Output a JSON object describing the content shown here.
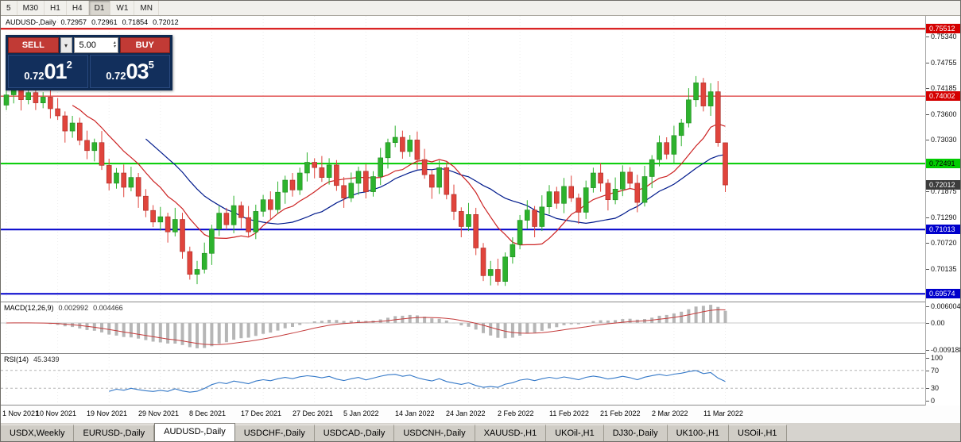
{
  "toolbar": {
    "periods": [
      "5",
      "M30",
      "H1",
      "H4",
      "D1",
      "W1",
      "MN"
    ],
    "active": "D1"
  },
  "chart": {
    "symbol_label": "AUDUSD-,Daily",
    "ohlc": [
      "0.72957",
      "0.72961",
      "0.71854",
      "0.72012"
    ]
  },
  "trade_panel": {
    "sell_label": "SELL",
    "buy_label": "BUY",
    "volume": "5.00",
    "sell_price": {
      "base": "0.72",
      "pips": "01",
      "frac": "2"
    },
    "buy_price": {
      "base": "0.72",
      "pips": "03",
      "frac": "5"
    }
  },
  "chart_data": {
    "type": "candlestick",
    "symbol": "AUDUSD",
    "timeframe": "Daily",
    "price_max": 0.758,
    "price_min": 0.694,
    "x_offset": 7,
    "x_step": 9.23,
    "up_color": "#2db22d",
    "down_color": "#e0443c",
    "wick_up": "#1d8a1d",
    "wick_down": "#a82c26",
    "ma_fast": {
      "period": 10,
      "color": "#cc2222"
    },
    "ma_slow": {
      "period": 20,
      "color": "#001a8c"
    },
    "y_ticks": [
      "0.75340",
      "0.74755",
      "0.74185",
      "0.73600",
      "0.73030",
      "0.72445",
      "0.71875",
      "0.71290",
      "0.70720",
      "0.70135"
    ],
    "hlines": [
      {
        "value": 0.75512,
        "label": "0.75512",
        "color": "#d40000",
        "width": 2,
        "text": "#ffffff"
      },
      {
        "value": 0.74002,
        "label": "0.74002",
        "color": "#d40000",
        "width": 1,
        "text": "#ffffff"
      },
      {
        "value": 0.72491,
        "label": "0.72491",
        "color": "#00cc00",
        "width": 2,
        "text": "#000000"
      },
      {
        "value": 0.71013,
        "label": "0.71013",
        "color": "#0000cc",
        "width": 2,
        "text": "#ffffff"
      },
      {
        "value": 0.69574,
        "label": "0.69574",
        "color": "#0000cc",
        "width": 2,
        "text": "#ffffff"
      }
    ],
    "current_price": {
      "value": 0.72012,
      "label": "0.72012",
      "bg": "#3c3c3c",
      "text": "#ffffff"
    },
    "date_ticks": [
      {
        "i": 0,
        "label": "1 Nov 2021"
      },
      {
        "i": 7,
        "label": "10 Nov 2021"
      },
      {
        "i": 14,
        "label": "19 Nov 2021"
      },
      {
        "i": 21,
        "label": "29 Nov 2021"
      },
      {
        "i": 28,
        "label": "8 Dec 2021"
      },
      {
        "i": 35,
        "label": "17 Dec 2021"
      },
      {
        "i": 42,
        "label": "27 Dec 2021"
      },
      {
        "i": 49,
        "label": "5 Jan 2022"
      },
      {
        "i": 56,
        "label": "14 Jan 2022"
      },
      {
        "i": 63,
        "label": "24 Jan 2022"
      },
      {
        "i": 70,
        "label": "2 Feb 2022"
      },
      {
        "i": 77,
        "label": "11 Feb 2022"
      },
      {
        "i": 84,
        "label": "21 Feb 2022"
      },
      {
        "i": 91,
        "label": "2 Mar 2022"
      },
      {
        "i": 98,
        "label": "11 Mar 2022"
      }
    ],
    "candles": [
      [
        0.738,
        0.7415,
        0.7369,
        0.7403
      ],
      [
        0.7403,
        0.7443,
        0.7384,
        0.7421
      ],
      [
        0.7421,
        0.743,
        0.7368,
        0.7392
      ],
      [
        0.7392,
        0.7434,
        0.7382,
        0.7408
      ],
      [
        0.7408,
        0.7423,
        0.7369,
        0.7385
      ],
      [
        0.7385,
        0.7409,
        0.7373,
        0.7398
      ],
      [
        0.7398,
        0.7417,
        0.735,
        0.7372
      ],
      [
        0.7372,
        0.7396,
        0.7347,
        0.7356
      ],
      [
        0.7356,
        0.7366,
        0.7296,
        0.7322
      ],
      [
        0.7322,
        0.7356,
        0.7307,
        0.734
      ],
      [
        0.734,
        0.7352,
        0.729,
        0.7301
      ],
      [
        0.7301,
        0.7323,
        0.7259,
        0.7278
      ],
      [
        0.7278,
        0.7305,
        0.7254,
        0.7296
      ],
      [
        0.7296,
        0.7322,
        0.7235,
        0.7245
      ],
      [
        0.7245,
        0.726,
        0.7189,
        0.7205
      ],
      [
        0.7205,
        0.7239,
        0.7193,
        0.7228
      ],
      [
        0.7228,
        0.7247,
        0.7174,
        0.7196
      ],
      [
        0.7196,
        0.7242,
        0.7187,
        0.7218
      ],
      [
        0.7218,
        0.7228,
        0.715,
        0.7176
      ],
      [
        0.7176,
        0.7192,
        0.7129,
        0.7144
      ],
      [
        0.7144,
        0.7156,
        0.7107,
        0.7118
      ],
      [
        0.7118,
        0.7152,
        0.7099,
        0.713
      ],
      [
        0.713,
        0.7139,
        0.7072,
        0.7096
      ],
      [
        0.7096,
        0.715,
        0.7086,
        0.7124
      ],
      [
        0.7124,
        0.7139,
        0.7036,
        0.7052
      ],
      [
        0.7052,
        0.7063,
        0.6989,
        0.7001
      ],
      [
        0.7001,
        0.7031,
        0.6979,
        0.7012
      ],
      [
        0.7012,
        0.7072,
        0.7003,
        0.7048
      ],
      [
        0.7048,
        0.7112,
        0.7022,
        0.7102
      ],
      [
        0.7102,
        0.7154,
        0.7087,
        0.7138
      ],
      [
        0.7138,
        0.715,
        0.7101,
        0.7112
      ],
      [
        0.7112,
        0.7177,
        0.7093,
        0.7155
      ],
      [
        0.7155,
        0.7164,
        0.7104,
        0.7128
      ],
      [
        0.7128,
        0.7154,
        0.7086,
        0.7096
      ],
      [
        0.7096,
        0.7157,
        0.708,
        0.7142
      ],
      [
        0.7142,
        0.7179,
        0.713,
        0.7168
      ],
      [
        0.7168,
        0.7187,
        0.7124,
        0.7146
      ],
      [
        0.7146,
        0.7209,
        0.7137,
        0.7185
      ],
      [
        0.7185,
        0.7222,
        0.7159,
        0.7212
      ],
      [
        0.7212,
        0.7228,
        0.7175,
        0.719
      ],
      [
        0.719,
        0.724,
        0.7179,
        0.7228
      ],
      [
        0.7228,
        0.7274,
        0.7209,
        0.7252
      ],
      [
        0.7252,
        0.7261,
        0.7216,
        0.724
      ],
      [
        0.724,
        0.7266,
        0.7208,
        0.7218
      ],
      [
        0.7218,
        0.7261,
        0.7202,
        0.7246
      ],
      [
        0.7246,
        0.7257,
        0.7188,
        0.72
      ],
      [
        0.72,
        0.7219,
        0.715,
        0.7172
      ],
      [
        0.7172,
        0.7229,
        0.7163,
        0.7205
      ],
      [
        0.7205,
        0.7242,
        0.7179,
        0.7232
      ],
      [
        0.7232,
        0.7248,
        0.7171,
        0.7186
      ],
      [
        0.7186,
        0.7232,
        0.7175,
        0.722
      ],
      [
        0.722,
        0.7284,
        0.7201,
        0.7262
      ],
      [
        0.7262,
        0.7305,
        0.7238,
        0.7296
      ],
      [
        0.7296,
        0.7334,
        0.7286,
        0.7308
      ],
      [
        0.7308,
        0.7323,
        0.726,
        0.7276
      ],
      [
        0.7276,
        0.7313,
        0.7264,
        0.7302
      ],
      [
        0.7302,
        0.7321,
        0.7236,
        0.7258
      ],
      [
        0.7258,
        0.7282,
        0.7215,
        0.7224
      ],
      [
        0.7224,
        0.7234,
        0.717,
        0.7196
      ],
      [
        0.7196,
        0.7256,
        0.7181,
        0.724
      ],
      [
        0.724,
        0.7252,
        0.7169,
        0.718
      ],
      [
        0.718,
        0.7202,
        0.7123,
        0.7142
      ],
      [
        0.7142,
        0.7151,
        0.7084,
        0.7108
      ],
      [
        0.7108,
        0.7161,
        0.7098,
        0.7135
      ],
      [
        0.7135,
        0.715,
        0.7044,
        0.706
      ],
      [
        0.706,
        0.7071,
        0.6986,
        0.6998
      ],
      [
        0.6998,
        0.7031,
        0.6976,
        0.7012
      ],
      [
        0.7012,
        0.7036,
        0.6976,
        0.6985
      ],
      [
        0.6985,
        0.705,
        0.6975,
        0.704
      ],
      [
        0.704,
        0.7084,
        0.7025,
        0.7068
      ],
      [
        0.7068,
        0.7134,
        0.7057,
        0.7122
      ],
      [
        0.7122,
        0.7167,
        0.7103,
        0.7145
      ],
      [
        0.7145,
        0.7154,
        0.7084,
        0.7108
      ],
      [
        0.7108,
        0.7178,
        0.7098,
        0.7152
      ],
      [
        0.7152,
        0.7201,
        0.7136,
        0.7186
      ],
      [
        0.7186,
        0.7197,
        0.7148,
        0.716
      ],
      [
        0.716,
        0.7217,
        0.7138,
        0.7198
      ],
      [
        0.7198,
        0.7222,
        0.7163,
        0.7172
      ],
      [
        0.7172,
        0.7182,
        0.7114,
        0.714
      ],
      [
        0.714,
        0.7211,
        0.7125,
        0.7195
      ],
      [
        0.7195,
        0.724,
        0.7184,
        0.7228
      ],
      [
        0.7228,
        0.725,
        0.7186,
        0.7205
      ],
      [
        0.7205,
        0.7214,
        0.7144,
        0.7168
      ],
      [
        0.7168,
        0.7218,
        0.7158,
        0.7192
      ],
      [
        0.7192,
        0.7245,
        0.7176,
        0.723
      ],
      [
        0.723,
        0.7241,
        0.7193,
        0.7205
      ],
      [
        0.7205,
        0.7224,
        0.714,
        0.7162
      ],
      [
        0.7162,
        0.7244,
        0.7153,
        0.722
      ],
      [
        0.722,
        0.7268,
        0.7194,
        0.7258
      ],
      [
        0.7258,
        0.7312,
        0.7243,
        0.7296
      ],
      [
        0.7296,
        0.7308,
        0.7259,
        0.727
      ],
      [
        0.727,
        0.7334,
        0.7251,
        0.7312
      ],
      [
        0.7312,
        0.7349,
        0.7288,
        0.734
      ],
      [
        0.734,
        0.7418,
        0.733,
        0.7392
      ],
      [
        0.7392,
        0.7445,
        0.7376,
        0.743
      ],
      [
        0.743,
        0.7441,
        0.7366,
        0.7378
      ],
      [
        0.7378,
        0.7429,
        0.7356,
        0.741
      ],
      [
        0.741,
        0.7434,
        0.7287,
        0.7296
      ],
      [
        0.72957,
        0.72961,
        0.71854,
        0.72012
      ]
    ]
  },
  "macd": {
    "name": "MACD(12,26,9)",
    "values": [
      "0.002992",
      "0.004466"
    ],
    "axis": [
      {
        "label": "0.006004",
        "value": 0.006004
      },
      {
        "label": "0.00",
        "value": 0
      },
      {
        "label": "-0.009188",
        "value": -0.009188
      }
    ],
    "range": {
      "max": 0.007,
      "min": -0.0102
    },
    "hist_color": "#b6b6b6",
    "signal_color": "#c43c3c"
  },
  "rsi": {
    "name": "RSI(14)",
    "value": "45.3439",
    "axis": [
      {
        "label": "100",
        "value": 100
      },
      {
        "label": "70",
        "value": 70
      },
      {
        "label": "30",
        "value": 30
      },
      {
        "label": "0",
        "value": 0
      }
    ],
    "levels": [
      70,
      30
    ],
    "line_color": "#3579c8"
  },
  "tabs": {
    "active_index": 2,
    "items": [
      "USDX,Weekly",
      "EURUSD-,Daily",
      "AUDUSD-,Daily",
      "USDCHF-,Daily",
      "USDCAD-,Daily",
      "USDCNH-,Daily",
      "XAUUSD-,H1",
      "UKOil-,H1",
      "DJ30-,Daily",
      "UK100-,H1",
      "USOil-,H1"
    ]
  }
}
